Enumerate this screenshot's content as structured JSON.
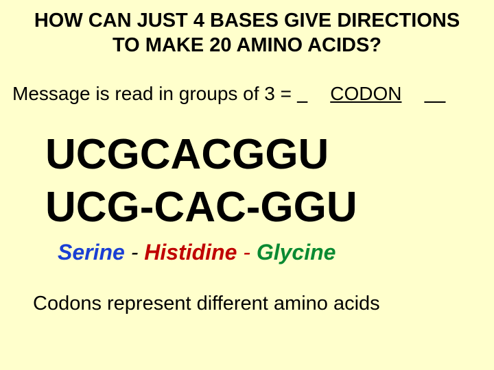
{
  "title": "HOW CAN JUST 4 BASES GIVE DIRECTIONS TO MAKE 20 AMINO ACIDS?",
  "message_prefix": "Message is read in groups of 3 = ",
  "blank_answer": "CODON",
  "sequence_raw": "UCGCACGGU",
  "sequence_split": "UCG-CAC-GGU",
  "amino_acids": {
    "a1": "Serine",
    "a2": "Histidine",
    "a3": "Glycine"
  },
  "footer": "Codons represent different amino acids",
  "colors": {
    "background": "#ffffcc",
    "text": "#000000",
    "amino1": "#1a3fd4",
    "amino2": "#c00000",
    "amino3": "#0a8a32"
  },
  "typography": {
    "title_fontsize": 29,
    "message_fontsize": 28,
    "sequence_fontsize": 62,
    "amino_fontsize": 32,
    "footer_fontsize": 29,
    "font_family": "Comic Sans MS"
  }
}
